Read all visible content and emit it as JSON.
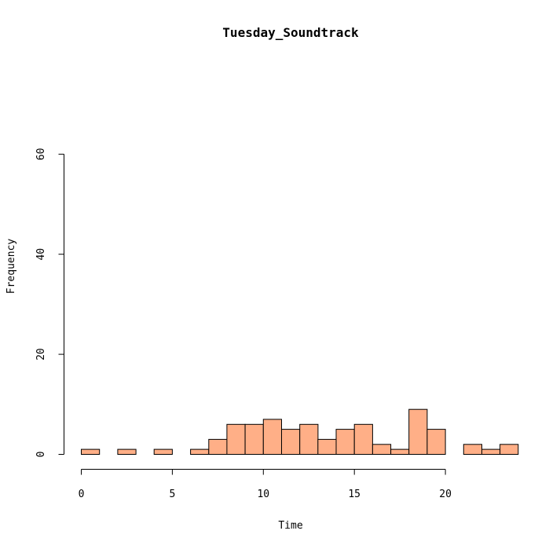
{
  "chart_data": {
    "type": "bar",
    "title": "Tuesday_Soundtrack",
    "xlabel": "Time",
    "ylabel": "Frequency",
    "xlim": [
      0,
      24
    ],
    "ylim": [
      0,
      60
    ],
    "x_ticks": [
      0,
      5,
      10,
      15,
      20
    ],
    "y_ticks": [
      0,
      20,
      40,
      60
    ],
    "bin_width": 1,
    "bins": [
      {
        "start": 0,
        "count": 1
      },
      {
        "start": 1,
        "count": 0
      },
      {
        "start": 2,
        "count": 1
      },
      {
        "start": 3,
        "count": 0
      },
      {
        "start": 4,
        "count": 1
      },
      {
        "start": 5,
        "count": 0
      },
      {
        "start": 6,
        "count": 1
      },
      {
        "start": 7,
        "count": 3
      },
      {
        "start": 8,
        "count": 6
      },
      {
        "start": 9,
        "count": 6
      },
      {
        "start": 10,
        "count": 7
      },
      {
        "start": 11,
        "count": 5
      },
      {
        "start": 12,
        "count": 6
      },
      {
        "start": 13,
        "count": 3
      },
      {
        "start": 14,
        "count": 5
      },
      {
        "start": 15,
        "count": 6
      },
      {
        "start": 16,
        "count": 2
      },
      {
        "start": 17,
        "count": 1
      },
      {
        "start": 18,
        "count": 9
      },
      {
        "start": 19,
        "count": 5
      },
      {
        "start": 20,
        "count": 0
      },
      {
        "start": 21,
        "count": 2
      },
      {
        "start": 22,
        "count": 1
      },
      {
        "start": 23,
        "count": 2
      }
    ],
    "bar_color": "#FFAF87",
    "grid": false,
    "legend": "none"
  }
}
